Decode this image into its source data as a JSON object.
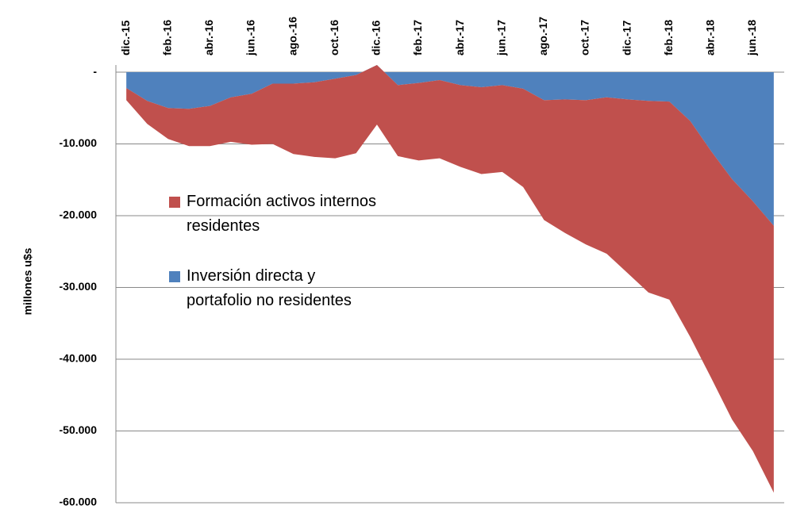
{
  "chart_data": {
    "type": "area",
    "stacked": true,
    "y_label": "millones u$s",
    "categories": [
      "dic.-15",
      null,
      "feb.-16",
      null,
      "abr.-16",
      null,
      "jun.-16",
      null,
      "ago.-16",
      null,
      "oct.-16",
      null,
      "dic.-16",
      null,
      "feb.-17",
      null,
      "abr.-17",
      null,
      "jun.-17",
      null,
      "ago.-17",
      null,
      "oct.-17",
      null,
      "dic.-17",
      null,
      "feb.-18",
      null,
      "abr.-18",
      null,
      "jun.-18",
      null
    ],
    "series": [
      {
        "name": "Inversión directa y portafolio no residentes",
        "color": "#4f81bd",
        "values": [
          -2200,
          -4000,
          -5000,
          -5100,
          -4700,
          -3500,
          -3000,
          -1600,
          -1600,
          -1400,
          -900,
          -400,
          1000,
          -1800,
          -1500,
          -1100,
          -1800,
          -2100,
          -1800,
          -2300,
          -3900,
          -3800,
          -3900,
          -3500,
          -3800,
          -4000,
          -4100,
          -6800,
          -11000,
          -14900,
          -18000,
          -21400
        ]
      },
      {
        "name": "Formación activos internos residentes",
        "color": "#c0504d",
        "values": [
          -1700,
          -3200,
          -4300,
          -5200,
          -5600,
          -6200,
          -7100,
          -8400,
          -9800,
          -10400,
          -11100,
          -10900,
          -8300,
          -9900,
          -10800,
          -10900,
          -11400,
          -12100,
          -12100,
          -13700,
          -16700,
          -18600,
          -20100,
          -21800,
          -24200,
          -26700,
          -27600,
          -30100,
          -31600,
          -33500,
          -34800,
          -37200
        ]
      }
    ],
    "ylim": [
      -60000,
      1000
    ],
    "yticks": [
      {
        "value": 0,
        "label": "-"
      },
      {
        "value": -10000,
        "label": "-10.000"
      },
      {
        "value": -20000,
        "label": "-20.000"
      },
      {
        "value": -30000,
        "label": "-30.000"
      },
      {
        "value": -40000,
        "label": "-40.000"
      },
      {
        "value": -50000,
        "label": "-50.000"
      },
      {
        "value": -60000,
        "label": "-60.000"
      }
    ],
    "grid": true
  }
}
